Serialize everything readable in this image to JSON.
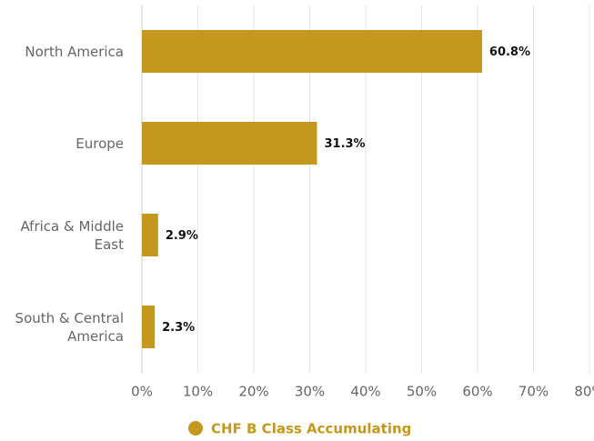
{
  "chart_data": {
    "type": "bar",
    "orientation": "horizontal",
    "categories": [
      "North America",
      "Europe",
      "Africa & Middle East",
      "South & Central America"
    ],
    "series": [
      {
        "name": "CHF B Class Accumulating",
        "color": "#c4981c",
        "values": [
          60.8,
          31.3,
          2.9,
          2.3
        ],
        "value_labels": [
          "60.8%",
          "31.3%",
          "2.9%",
          "2.3%"
        ]
      }
    ],
    "xlim": [
      0,
      80
    ],
    "xticks": [
      {
        "value": 0,
        "label": "0%"
      },
      {
        "value": 10,
        "label": "10%"
      },
      {
        "value": 20,
        "label": "20%"
      },
      {
        "value": 30,
        "label": "30%"
      },
      {
        "value": 40,
        "label": "40%"
      },
      {
        "value": 50,
        "label": "50%"
      },
      {
        "value": 60,
        "label": "60%"
      },
      {
        "value": 70,
        "label": "70%"
      },
      {
        "value": 80,
        "label": "80%"
      }
    ],
    "grid": true,
    "legend": "bottom"
  }
}
